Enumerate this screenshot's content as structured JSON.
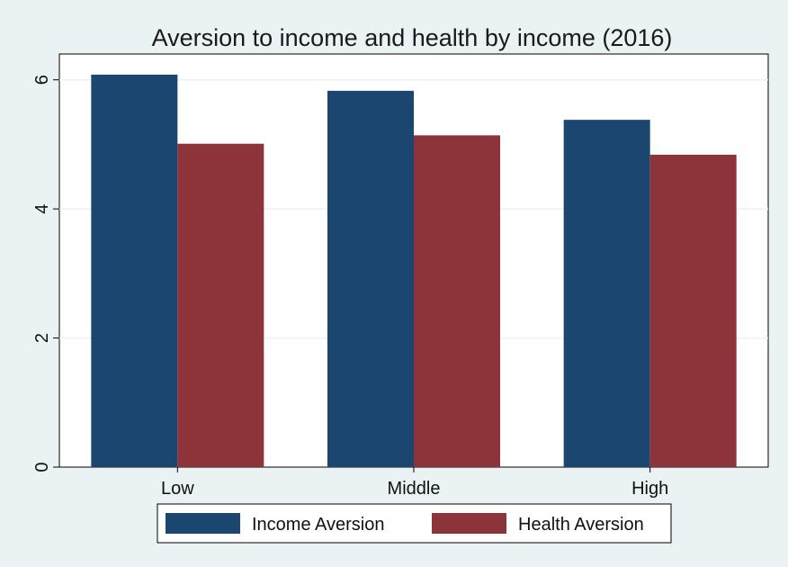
{
  "chart_data": {
    "type": "bar",
    "title": "Aversion to income and health by income (2016)",
    "xlabel": "",
    "ylabel": "",
    "categories": [
      "Low",
      "Middle",
      "High"
    ],
    "series": [
      {
        "name": "Income Aversion",
        "color": "#1b4670",
        "values": [
          6.08,
          5.83,
          5.38
        ]
      },
      {
        "name": "Health Aversion",
        "color": "#8d343a",
        "values": [
          5.01,
          5.14,
          4.84
        ]
      }
    ],
    "ylim": [
      0,
      6.4
    ],
    "yticks": [
      0,
      2,
      4,
      6
    ],
    "grid": true,
    "legend_position": "bottom"
  },
  "colors": {
    "background": "#eaf2f3",
    "plot_background": "#ffffff",
    "gridline": "#eaf2f3"
  }
}
